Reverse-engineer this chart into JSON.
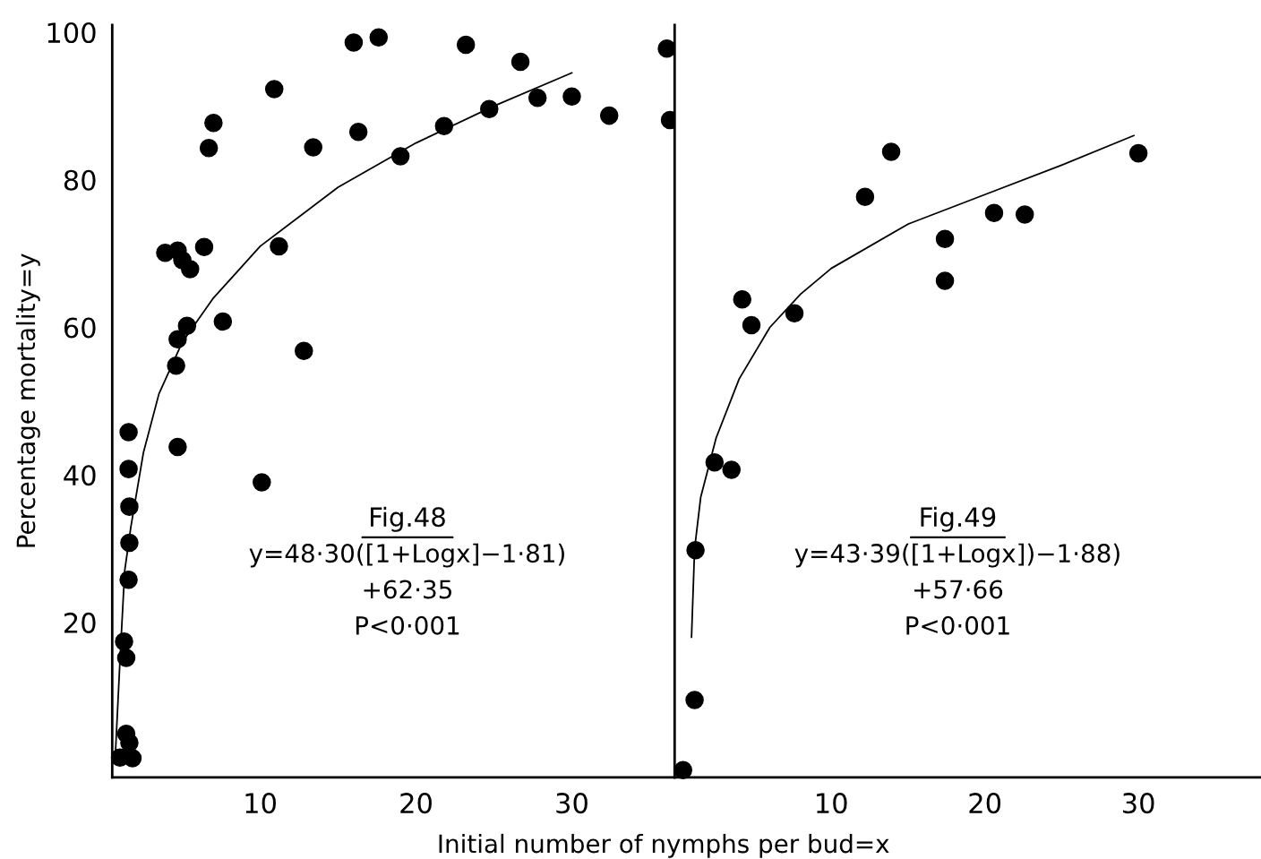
{
  "chart_data": [
    {
      "type": "scatter",
      "ylabel": "Percentage mortality=y",
      "xlabel": "Initial number of nymphs per bud=x",
      "xlim": [
        0.5,
        36.6
      ],
      "ylim": [
        -1,
        101
      ],
      "xticks": [
        10,
        20,
        30
      ],
      "yticks": [
        20,
        40,
        60,
        80,
        100
      ],
      "tick_labels": true,
      "grid": false,
      "legend": false,
      "annotations": [
        "Fig.48",
        "y=48·30([1+Logx]−1·81)",
        "+62·35",
        "P<0·001"
      ],
      "series": [
        {
          "color": "#000000",
          "marker": "circle",
          "x": [
            1.0,
            1.26,
            1.4,
            1.4,
            1.6,
            1.8,
            1.55,
            1.55,
            1.6,
            1.6,
            1.55,
            3.9,
            4.7,
            5.0,
            5.5,
            6.4,
            4.7,
            5.3,
            4.6,
            4.7,
            6.7,
            7.0,
            7.6,
            10.1,
            10.9,
            11.2,
            12.8,
            13.4,
            16.0,
            16.3,
            17.6,
            19.0,
            21.8,
            23.2,
            24.7,
            26.7,
            27.8,
            30.0,
            32.4,
            36.1,
            36.3
          ],
          "values": [
            1.7,
            17.4,
            15.2,
            4.9,
            3.7,
            1.6,
            45.8,
            40.8,
            35.7,
            30.8,
            25.8,
            70.1,
            70.4,
            69.1,
            67.9,
            70.9,
            58.4,
            60.2,
            54.8,
            43.8,
            84.3,
            87.7,
            60.8,
            39.0,
            92.3,
            71.0,
            56.8,
            84.4,
            98.6,
            86.5,
            99.3,
            83.2,
            87.3,
            98.3,
            89.6,
            96.0,
            91.1,
            91.3,
            88.7,
            97.8,
            88.1
          ]
        },
        {
          "type": "line",
          "color": "#000000",
          "line_style": "solid",
          "x": [
            0.7,
            1.0,
            1.3,
            1.7,
            2.5,
            3.5,
            5,
            7,
            10,
            15,
            20,
            25,
            30
          ],
          "values": [
            2,
            15,
            27,
            33,
            43,
            51,
            58,
            64,
            71,
            79,
            85,
            90,
            94.5
          ]
        }
      ]
    },
    {
      "type": "scatter",
      "xlim": [
        -0.2,
        37.9
      ],
      "ylim": [
        -1,
        101
      ],
      "xticks": [
        10,
        20,
        30
      ],
      "tick_labels": "x",
      "grid": false,
      "legend": false,
      "annotations": [
        "Fig.49",
        "y=43·39([1+Logx])−1·88)",
        "+57·66",
        "P<0·001"
      ],
      "series": [
        {
          "color": "#000000",
          "marker": "circle",
          "x": [
            0.35,
            1.1,
            1.16,
            2.4,
            3.5,
            4.2,
            4.8,
            7.6,
            12.2,
            13.9,
            17.4,
            17.4,
            20.6,
            22.6,
            30.0
          ],
          "values": [
            0,
            9.5,
            29.8,
            41.7,
            40.7,
            63.8,
            60.3,
            61.9,
            77.7,
            83.8,
            72.0,
            66.3,
            75.5,
            75.3,
            83.6
          ]
        },
        {
          "type": "line",
          "color": "#000000",
          "line_style": "solid",
          "x": [
            0.9,
            1.1,
            1.5,
            2.5,
            4,
            6,
            8,
            10,
            15,
            20,
            25,
            29.7
          ],
          "values": [
            18,
            30,
            37,
            45,
            53,
            60,
            64.5,
            68,
            74,
            78,
            82,
            86
          ]
        }
      ]
    }
  ]
}
